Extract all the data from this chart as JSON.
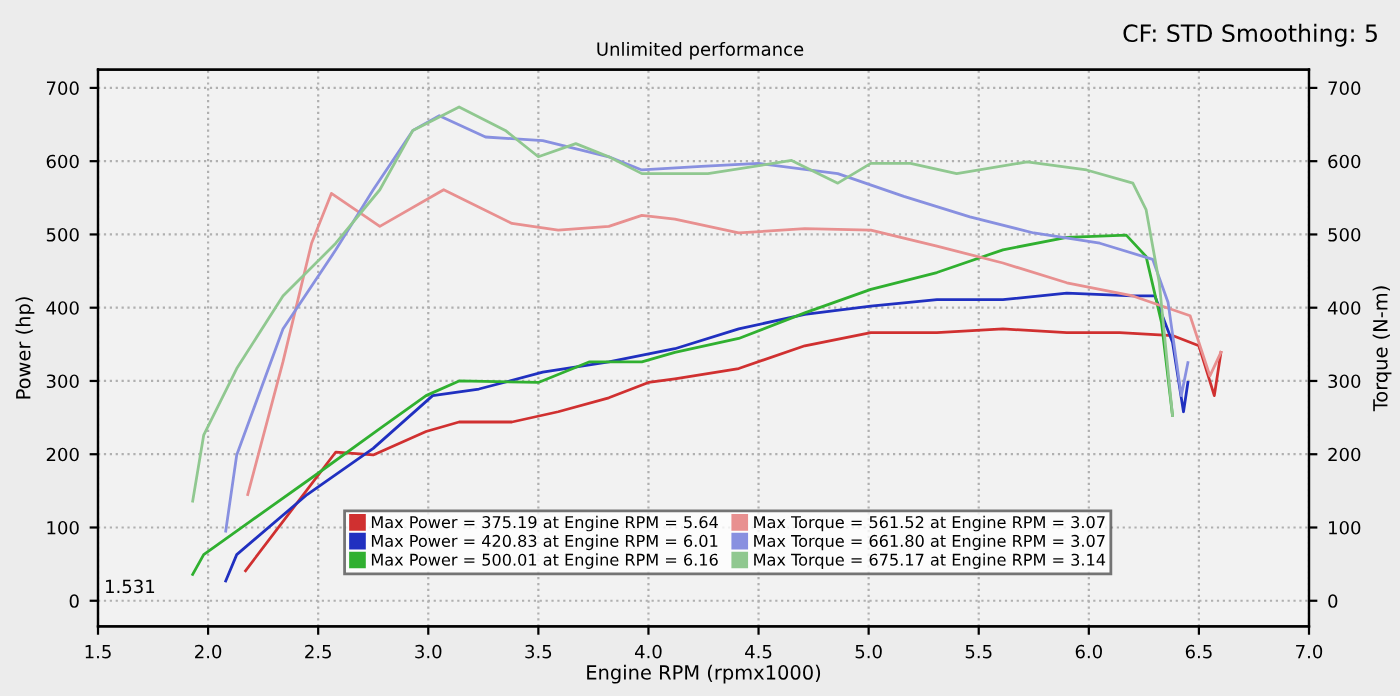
{
  "chart_data": {
    "type": "line",
    "subtitle": "Unlimited performance",
    "xlabel": "Engine RPM (rpmx1000)",
    "ylabel": "Power (hp)",
    "y2label": "Torque (N-m)",
    "annotations": [
      "CF: STD Smoothing: 5",
      "1.531"
    ],
    "xlim": [
      1.5,
      7.0
    ],
    "xticks": [
      {
        "value": 1.5,
        "label": "1.5"
      },
      {
        "value": 2.0,
        "label": "2.0"
      },
      {
        "value": 2.5,
        "label": "2.5"
      },
      {
        "value": 3.0,
        "label": "3.0"
      },
      {
        "value": 3.5,
        "label": "3.5"
      },
      {
        "value": 4.0,
        "label": "4.0"
      },
      {
        "value": 4.5,
        "label": "4.5"
      },
      {
        "value": 5.0,
        "label": "5.0"
      },
      {
        "value": 5.5,
        "label": "5.5"
      },
      {
        "value": 6.0,
        "label": "6.0"
      },
      {
        "value": 6.5,
        "label": "6.5"
      },
      {
        "value": 7.0,
        "label": "7.0"
      }
    ],
    "ylim": [
      -35,
      725
    ],
    "yticks": [
      0,
      100,
      200,
      300,
      400,
      500,
      600,
      700
    ],
    "y2lim": [
      -35,
      725
    ],
    "y2ticks": [
      0,
      100,
      200,
      300,
      400,
      500,
      600,
      700
    ],
    "grid": true,
    "legend": "bottom",
    "marker": "none",
    "line_style": "solid",
    "series": [
      {
        "name": "Max Power = 375.19 at Engine RPM = 5.64",
        "color": "#d03030",
        "x": [
          2.17,
          2.58,
          2.75,
          2.99,
          3.14,
          3.38,
          3.59,
          3.82,
          4.0,
          4.12,
          4.41,
          4.71,
          5.01,
          5.31,
          5.61,
          5.9,
          6.14,
          6.38,
          6.5,
          6.57,
          6.6
        ],
        "values": [
          41,
          203,
          199,
          231,
          244,
          244,
          258,
          277,
          298,
          303,
          317,
          348,
          366,
          366,
          371,
          366,
          366,
          362,
          348,
          280,
          339
        ]
      },
      {
        "name": "Max Power = 420.83 at Engine RPM = 6.01",
        "color": "#2030c0",
        "x": [
          2.08,
          2.13,
          2.45,
          2.75,
          3.02,
          3.23,
          3.52,
          3.82,
          4.12,
          4.41,
          4.71,
          5.01,
          5.31,
          5.61,
          5.9,
          6.2,
          6.3,
          6.38,
          6.43,
          6.45
        ],
        "values": [
          27,
          63,
          145,
          208,
          280,
          289,
          312,
          326,
          344,
          371,
          391,
          402,
          411,
          411,
          420,
          416,
          416,
          353,
          258,
          298
        ]
      },
      {
        "name": "Max Power = 500.01 at Engine RPM = 6.16",
        "color": "#30b030",
        "x": [
          1.93,
          1.98,
          2.19,
          2.49,
          2.78,
          2.99,
          3.14,
          3.5,
          3.73,
          3.97,
          4.12,
          4.41,
          4.71,
          5.01,
          5.31,
          5.61,
          5.9,
          6.17,
          6.26,
          6.33,
          6.38
        ],
        "values": [
          36,
          63,
          108,
          172,
          235,
          280,
          300,
          298,
          326,
          326,
          339,
          358,
          393,
          425,
          448,
          479,
          496,
          499,
          470,
          380,
          253
        ]
      },
      {
        "name": "Max Torque = 561.52 at Engine RPM = 3.07",
        "color": "#e89090",
        "x": [
          2.18,
          2.34,
          2.47,
          2.56,
          2.78,
          3.07,
          3.38,
          3.59,
          3.82,
          3.97,
          4.12,
          4.41,
          4.71,
          5.01,
          5.31,
          5.61,
          5.9,
          6.2,
          6.46,
          6.55,
          6.6
        ],
        "values": [
          145,
          326,
          488,
          556,
          511,
          561,
          515,
          506,
          511,
          526,
          521,
          502,
          508,
          506,
          484,
          461,
          434,
          416,
          389,
          307,
          339
        ]
      },
      {
        "name": "Max Torque = 661.80 at Engine RPM = 3.07",
        "color": "#8890e0",
        "x": [
          2.08,
          2.13,
          2.34,
          2.58,
          2.75,
          2.93,
          3.05,
          3.26,
          3.52,
          3.82,
          3.97,
          4.24,
          4.5,
          4.86,
          5.16,
          5.46,
          5.75,
          6.05,
          6.29,
          6.36,
          6.42,
          6.45
        ],
        "values": [
          95,
          199,
          371,
          479,
          561,
          642,
          662,
          633,
          628,
          606,
          588,
          593,
          597,
          583,
          552,
          524,
          502,
          488,
          466,
          407,
          280,
          325
        ]
      },
      {
        "name": "Max Torque = 675.17 at Engine RPM = 3.14",
        "color": "#90c890",
        "x": [
          1.93,
          1.98,
          2.13,
          2.34,
          2.58,
          2.78,
          2.93,
          3.14,
          3.35,
          3.5,
          3.67,
          3.82,
          3.97,
          4.27,
          4.65,
          4.86,
          5.01,
          5.19,
          5.4,
          5.72,
          5.99,
          6.2,
          6.26,
          6.32,
          6.38
        ],
        "values": [
          136,
          226,
          317,
          416,
          488,
          561,
          642,
          674,
          642,
          606,
          624,
          606,
          583,
          583,
          601,
          570,
          597,
          597,
          583,
          599,
          588,
          570,
          534,
          434,
          253
        ]
      }
    ]
  }
}
